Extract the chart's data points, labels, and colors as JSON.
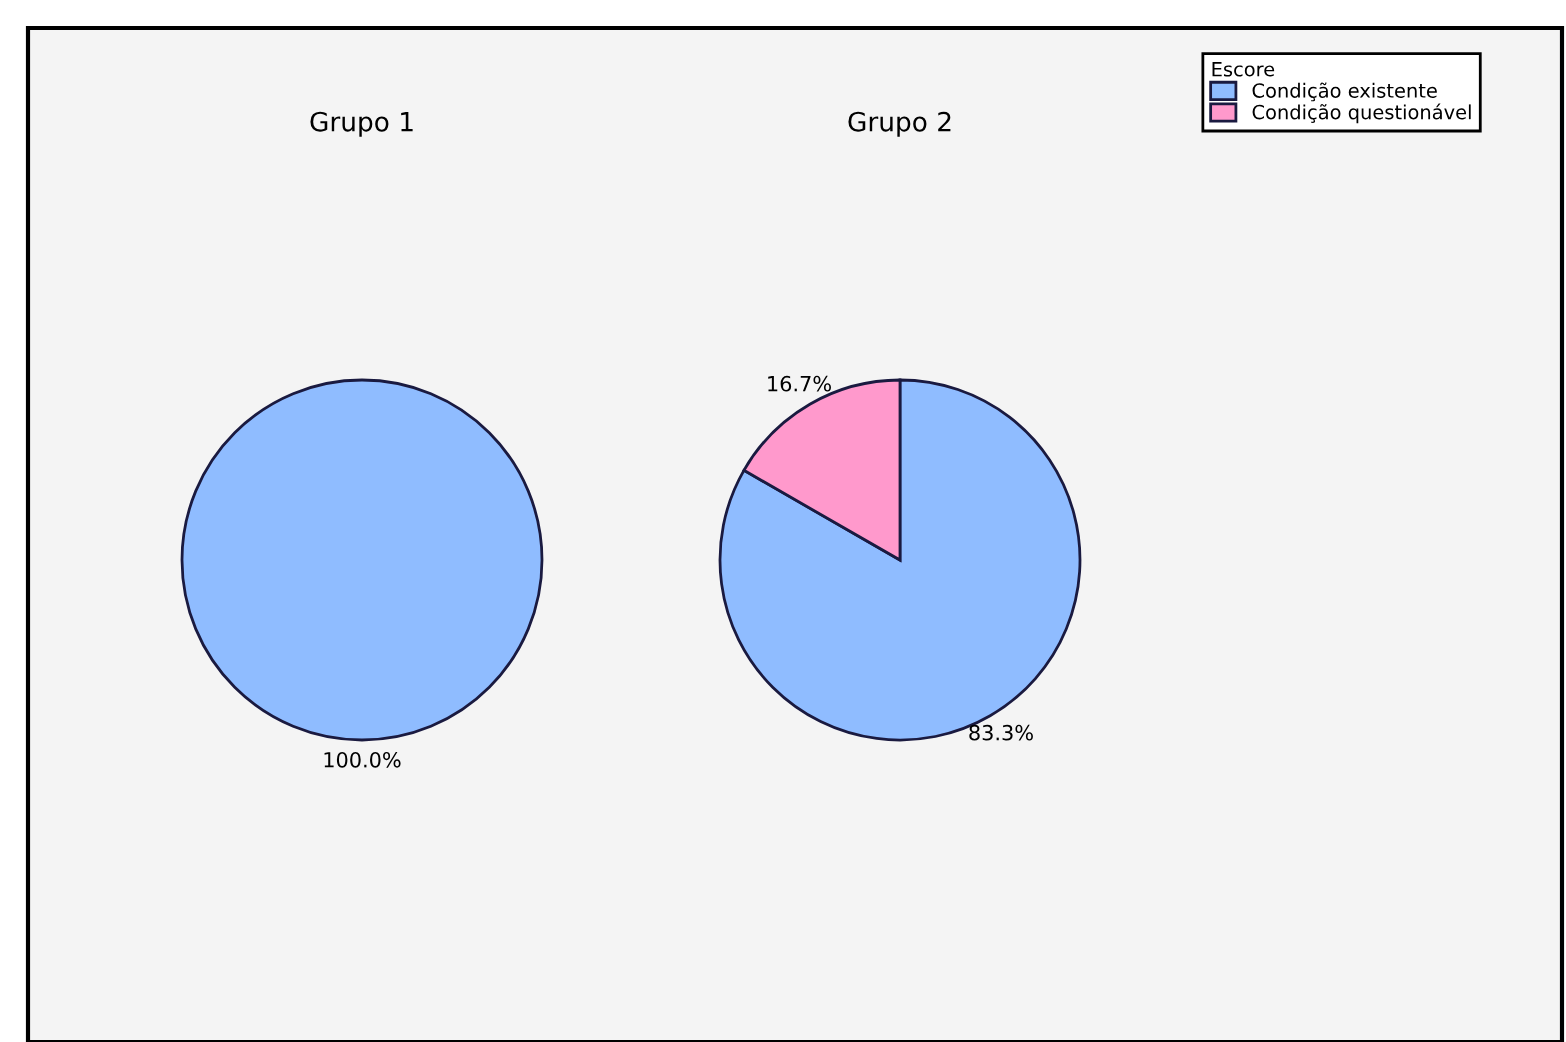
{
  "chart_data": [
    {
      "type": "pie",
      "title": "Grupo 1",
      "categories": [
        null
      ],
      "values": [
        100.0
      ],
      "colors": [
        "#8fbcff"
      ],
      "value_labels": [
        "100.0%"
      ]
    },
    {
      "type": "pie",
      "title": "Grupo 2",
      "categories": [
        "Condição existente",
        "Condição questionável"
      ],
      "values": [
        83.3,
        16.7
      ],
      "colors": [
        "#8fbcff",
        "#ff99cc"
      ],
      "value_labels": [
        "83.3%",
        "16.7%"
      ],
      "legend": "top right",
      "legend_title": "Escore"
    }
  ]
}
